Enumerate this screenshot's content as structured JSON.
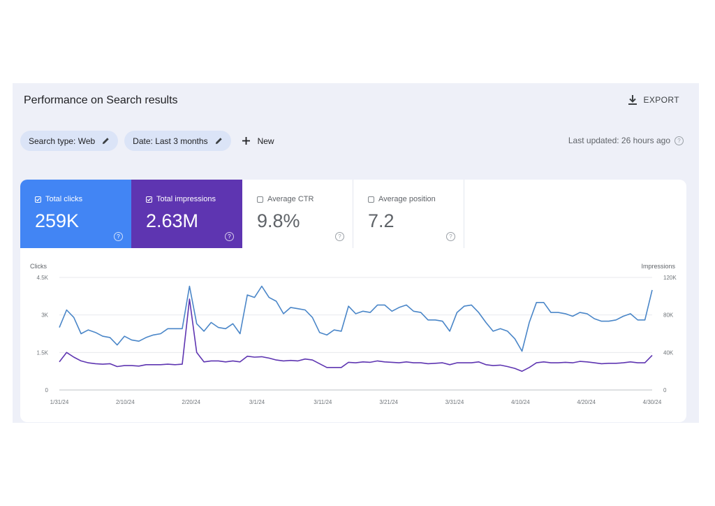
{
  "header": {
    "title": "Performance on Search results",
    "export_label": "EXPORT"
  },
  "filters": {
    "search_type": "Search type: Web",
    "date": "Date: Last 3 months",
    "new_label": "New",
    "last_updated": "Last updated: 26 hours ago"
  },
  "metrics": [
    {
      "label": "Total clicks",
      "value": "259K",
      "selected": true,
      "color": "#4285f4"
    },
    {
      "label": "Total impressions",
      "value": "2.63M",
      "selected": true,
      "color": "#5e35b1"
    },
    {
      "label": "Average CTR",
      "value": "9.8%",
      "selected": false,
      "color": "#ffffff"
    },
    {
      "label": "Average position",
      "value": "7.2",
      "selected": false,
      "color": "#ffffff"
    }
  ],
  "chart_data": {
    "type": "line",
    "left_axis_label": "Clicks",
    "right_axis_label": "Impressions",
    "x_tick_labels": [
      "1/31/24",
      "2/10/24",
      "2/20/24",
      "3/1/24",
      "3/11/24",
      "3/21/24",
      "3/31/24",
      "4/10/24",
      "4/20/24",
      "4/30/24"
    ],
    "y_left_ticks": [
      "4.5K",
      "3K",
      "1.5K",
      "0"
    ],
    "y_right_ticks": [
      "120K",
      "80K",
      "40K",
      "0"
    ],
    "y_left_range": [
      0,
      4500
    ],
    "y_right_range": [
      0,
      120000
    ],
    "grid": true,
    "x_start": "2024-01-31",
    "x_end": "2024-04-30",
    "series": [
      {
        "name": "Clicks",
        "axis": "left",
        "color": "#4a86c8",
        "values": [
          2500,
          3200,
          2900,
          2250,
          2400,
          2300,
          2150,
          2100,
          1800,
          2150,
          2000,
          1950,
          2100,
          2200,
          2250,
          2450,
          2450,
          2450,
          4150,
          2650,
          2350,
          2700,
          2500,
          2450,
          2650,
          2250,
          3800,
          3700,
          4150,
          3700,
          3550,
          3050,
          3300,
          3250,
          3200,
          2900,
          2300,
          2200,
          2400,
          2350,
          3350,
          3050,
          3150,
          3100,
          3400,
          3400,
          3150,
          3300,
          3400,
          3150,
          3100,
          2800,
          2800,
          2750,
          2350,
          3100,
          3350,
          3400,
          3100,
          2700,
          2350,
          2450,
          2350,
          2050,
          1550,
          2700,
          3500,
          3500,
          3100,
          3100,
          3050,
          2950,
          3100,
          3050,
          2850,
          2750,
          2750,
          2800,
          2950,
          3050,
          2800,
          2800,
          4000
        ]
      },
      {
        "name": "Impressions",
        "axis": "right",
        "color": "#5e35b1",
        "values": [
          30000,
          40000,
          35000,
          31000,
          29000,
          28000,
          27500,
          28000,
          25000,
          26000,
          26000,
          25500,
          27000,
          27000,
          27000,
          27500,
          27000,
          27500,
          97000,
          40000,
          30000,
          31000,
          31000,
          30000,
          31000,
          30000,
          36000,
          35000,
          35500,
          34000,
          32000,
          31000,
          31500,
          31000,
          33000,
          32000,
          28000,
          24000,
          24000,
          24000,
          29500,
          29000,
          30000,
          29500,
          31000,
          30000,
          29500,
          29000,
          30000,
          29000,
          29000,
          28000,
          28500,
          29000,
          27000,
          29000,
          29000,
          29000,
          30000,
          27000,
          26000,
          26500,
          25000,
          23000,
          20000,
          24000,
          29000,
          30000,
          29000,
          29000,
          29500,
          29000,
          30500,
          30000,
          29000,
          28000,
          28500,
          28500,
          29000,
          30000,
          29000,
          29000,
          37000
        ]
      }
    ]
  }
}
